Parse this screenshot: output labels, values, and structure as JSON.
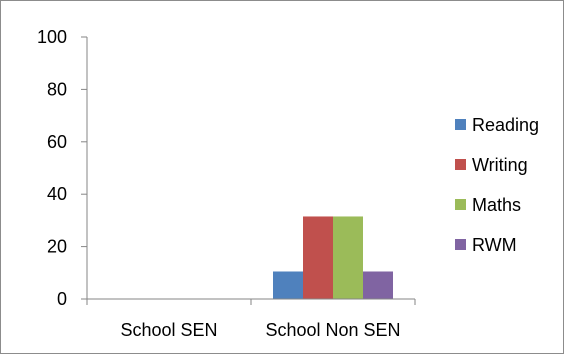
{
  "chart_data": {
    "type": "bar",
    "title": "",
    "xlabel": "",
    "ylabel": "",
    "categories": [
      "School SEN",
      "School Non SEN"
    ],
    "series": [
      {
        "name": "Reading",
        "color": "#4f81bd",
        "values": [
          0,
          10.5
        ]
      },
      {
        "name": "Writing",
        "color": "#c0504d",
        "values": [
          0,
          31.5
        ]
      },
      {
        "name": "Maths",
        "color": "#9bbb59",
        "values": [
          0,
          31.5
        ]
      },
      {
        "name": "RWM",
        "color": "#8064a2",
        "values": [
          0,
          10.5
        ]
      }
    ],
    "ylim": [
      0,
      100
    ],
    "yticks": [
      "0",
      "20",
      "40",
      "60",
      "80",
      "100"
    ],
    "grid": false,
    "legend": "right"
  }
}
